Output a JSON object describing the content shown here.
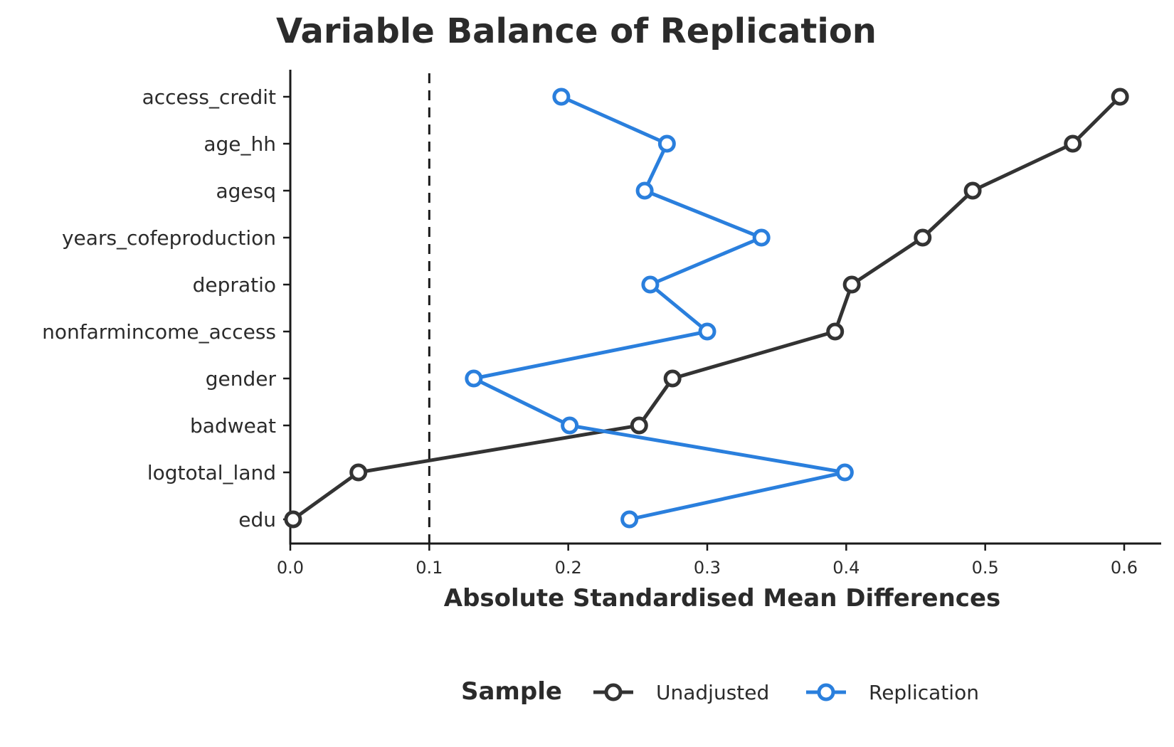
{
  "chart_data": {
    "type": "line",
    "title": "Variable Balance of Replication",
    "xlabel": "Absolute Standardised Mean Differences",
    "ylabel": "",
    "xlim": [
      0,
      0.62
    ],
    "xticks": [
      "0.0",
      "0.1",
      "0.2",
      "0.3",
      "0.4",
      "0.5",
      "0.6"
    ],
    "threshold": 0.1,
    "categories": [
      "access_credit",
      "age_hh",
      "agesq",
      "years_cofeproduction",
      "depratio",
      "nonfarmincome_access",
      "gender",
      "badweat",
      "logtotal_land",
      "edu"
    ],
    "series": [
      {
        "name": "Unadjusted",
        "color": "#333333",
        "values": [
          0.597,
          0.563,
          0.491,
          0.455,
          0.404,
          0.392,
          0.275,
          0.251,
          0.049,
          0.002
        ]
      },
      {
        "name": "Replication",
        "color": "#2a7fdd",
        "values": [
          0.195,
          0.271,
          0.255,
          0.339,
          0.259,
          0.3,
          0.132,
          0.201,
          0.399,
          0.244
        ]
      }
    ],
    "legend": {
      "title": "Sample",
      "position": "bottom"
    },
    "grid": false
  }
}
